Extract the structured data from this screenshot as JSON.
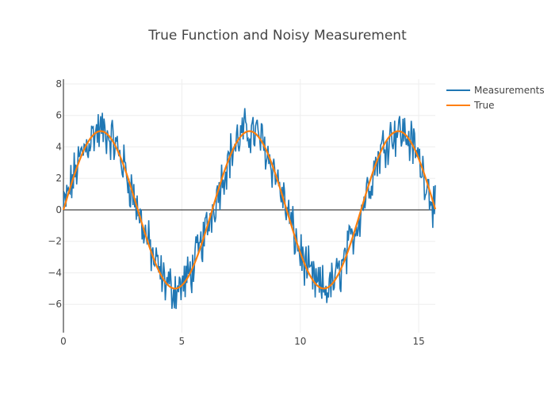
{
  "chart_data": {
    "type": "line",
    "title": "True Function and Noisy Measurement",
    "xlabel": "",
    "ylabel": "",
    "xlim": [
      0,
      15.7
    ],
    "ylim": [
      -7.8,
      8.3
    ],
    "xticks": [
      0,
      5,
      10,
      15
    ],
    "yticks": [
      -6,
      -4,
      -2,
      0,
      2,
      4,
      6,
      8
    ],
    "xtick_labels": [
      "0",
      "5",
      "10",
      "15"
    ],
    "ytick_labels": [
      "−6",
      "−4",
      "−2",
      "0",
      "2",
      "4",
      "6",
      "8"
    ],
    "grid": true,
    "zero_line": true,
    "legend": {
      "placement": "top-right"
    },
    "series": [
      {
        "name": "Measurements",
        "color": "#1f77b4",
        "true_amplitude": 5,
        "noise_amplitude": 1.2,
        "x_range": [
          0,
          15.7
        ],
        "points": 450
      },
      {
        "name": "True",
        "color": "#ff7f0e",
        "function": "5*sin(x)",
        "x_range": [
          0,
          15.7
        ],
        "points": 300
      }
    ]
  }
}
